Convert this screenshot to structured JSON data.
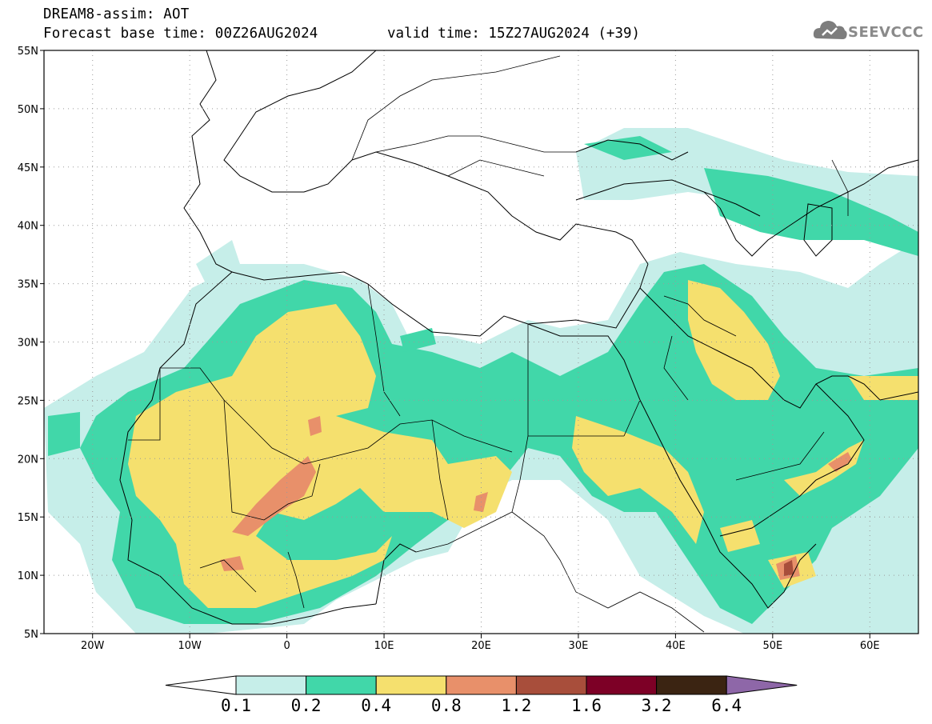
{
  "header": {
    "title_line1": "DREAM8-assim: AOT",
    "title_line2": "Forecast base time: 00Z26AUG2024",
    "valid_time": "valid time: 15Z27AUG2024 (+39)"
  },
  "logo": {
    "text": "SEEVCCC",
    "icon": "cloud-logo-icon"
  },
  "map": {
    "lon_range": [
      -25,
      65
    ],
    "lat_range": [
      5,
      55
    ],
    "lat_labels": [
      "5N",
      "10N",
      "15N",
      "20N",
      "25N",
      "30N",
      "35N",
      "40N",
      "45N",
      "50N",
      "55N"
    ],
    "lon_labels": [
      "20W",
      "10W",
      "0",
      "10E",
      "20E",
      "30E",
      "40E",
      "50E",
      "60E"
    ],
    "grid": true,
    "grid_style": "dotted"
  },
  "colorbar": {
    "labels": [
      "0.1",
      "0.2",
      "0.4",
      "0.8",
      "1.2",
      "1.6",
      "3.2",
      "6.4"
    ],
    "colors": [
      "#ffffff",
      "#c6eee9",
      "#41d7a9",
      "#f5e06e",
      "#e8906a",
      "#a84e3b",
      "#7d0026",
      "#3b2412",
      "#8e67a8"
    ]
  }
}
